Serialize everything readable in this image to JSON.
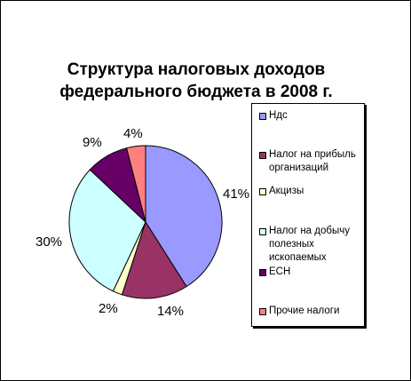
{
  "chart_data": {
    "type": "pie",
    "title": "Структура налоговых доходов федерального бюджета в 2008 г.",
    "legend_position": "right",
    "slices": [
      {
        "name": "Ндс",
        "value": 41,
        "label": "41%",
        "color": "#9999ff"
      },
      {
        "name": "Налог на прибыль организаций",
        "value": 14,
        "label": "14%",
        "color": "#993366"
      },
      {
        "name": "Акцизы",
        "value": 2,
        "label": "2%",
        "color": "#ffffcc"
      },
      {
        "name": "Налог на добычу полезных ископаемых",
        "value": 30,
        "label": "30%",
        "color": "#ccffff"
      },
      {
        "name": "ЕСН",
        "value": 9,
        "label": "9%",
        "color": "#660066"
      },
      {
        "name": "Прочие налоги",
        "value": 4,
        "label": "4%",
        "color": "#ff8080"
      }
    ]
  }
}
